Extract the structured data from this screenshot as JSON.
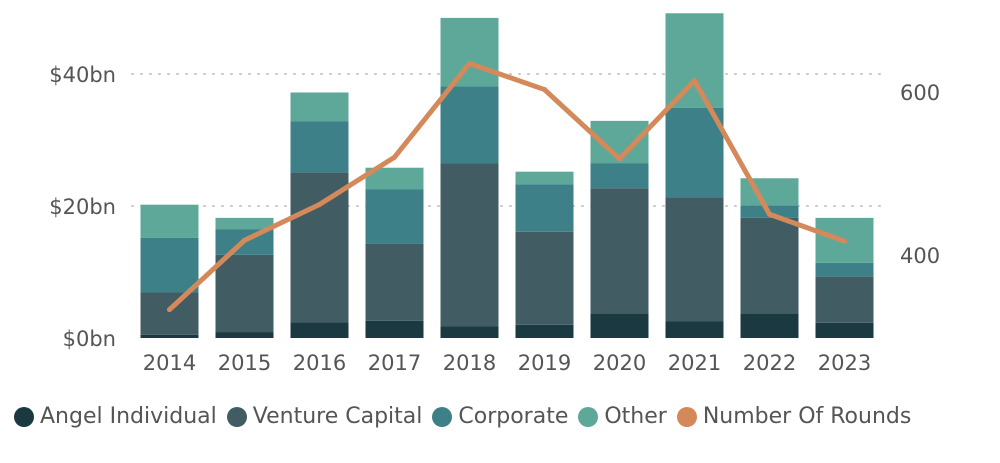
{
  "chart_data": {
    "type": "bar",
    "stacked": true,
    "title": "",
    "xlabel": "",
    "ylabel": "",
    "categories": [
      "2014",
      "2015",
      "2016",
      "2017",
      "2018",
      "2019",
      "2020",
      "2021",
      "2022",
      "2023"
    ],
    "series": [
      {
        "name": "Angel Individual",
        "color": "#1b3940",
        "values": [
          0.5,
          0.9,
          2.4,
          2.6,
          1.8,
          2.0,
          3.7,
          2.5,
          3.7,
          2.3
        ]
      },
      {
        "name": "Venture Capital",
        "color": "#415d63",
        "values": [
          6.4,
          11.7,
          22.7,
          11.7,
          24.7,
          14.1,
          19.0,
          18.8,
          14.5,
          7.0
        ]
      },
      {
        "name": "Corporate",
        "color": "#3e8088",
        "values": [
          8.3,
          3.9,
          7.7,
          8.2,
          11.6,
          7.2,
          3.8,
          13.6,
          1.9,
          2.1
        ]
      },
      {
        "name": "Other",
        "color": "#5da898",
        "values": [
          5.0,
          1.7,
          4.4,
          3.3,
          10.4,
          1.9,
          6.4,
          14.3,
          4.1,
          6.8
        ]
      }
    ],
    "line_series": {
      "name": "Number Of Rounds",
      "color": "#d4895b",
      "axis": "right",
      "values": [
        333,
        418,
        462,
        520,
        635,
        603,
        518,
        614,
        450,
        417
      ]
    },
    "y_left": {
      "ylim": [
        0,
        50
      ],
      "ticks": [
        0,
        20,
        40
      ],
      "tick_labels": [
        "$0bn",
        "$20bn",
        "$40bn"
      ]
    },
    "y_right": {
      "ylim": [
        300,
        710
      ],
      "ticks": [
        400,
        600
      ],
      "tick_labels": [
        "400",
        "600"
      ]
    },
    "grid": true,
    "legend_position": "bottom-left"
  }
}
